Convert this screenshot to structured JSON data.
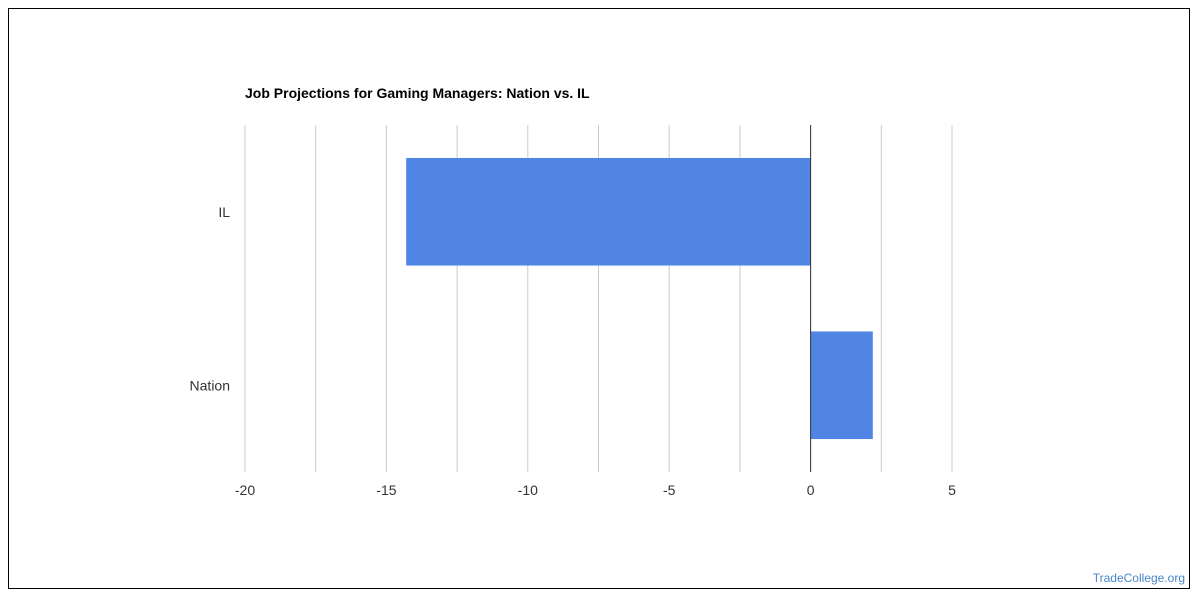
{
  "chart_data": {
    "type": "bar",
    "orientation": "horizontal",
    "title": "Job Projections for Gaming Managers: Nation vs. IL",
    "categories": [
      "IL",
      "Nation"
    ],
    "series": [
      {
        "values": [
          -14.3,
          2.2
        ]
      }
    ],
    "x_ticks": [
      -20,
      -15,
      -10,
      -5,
      0,
      5
    ],
    "xlim": [
      -20,
      5
    ],
    "grid": true,
    "bar_color": "#5185e4",
    "grid_color": "#cccccc",
    "zero_line_color": "#333333"
  },
  "watermark": "TradeCollege.org"
}
